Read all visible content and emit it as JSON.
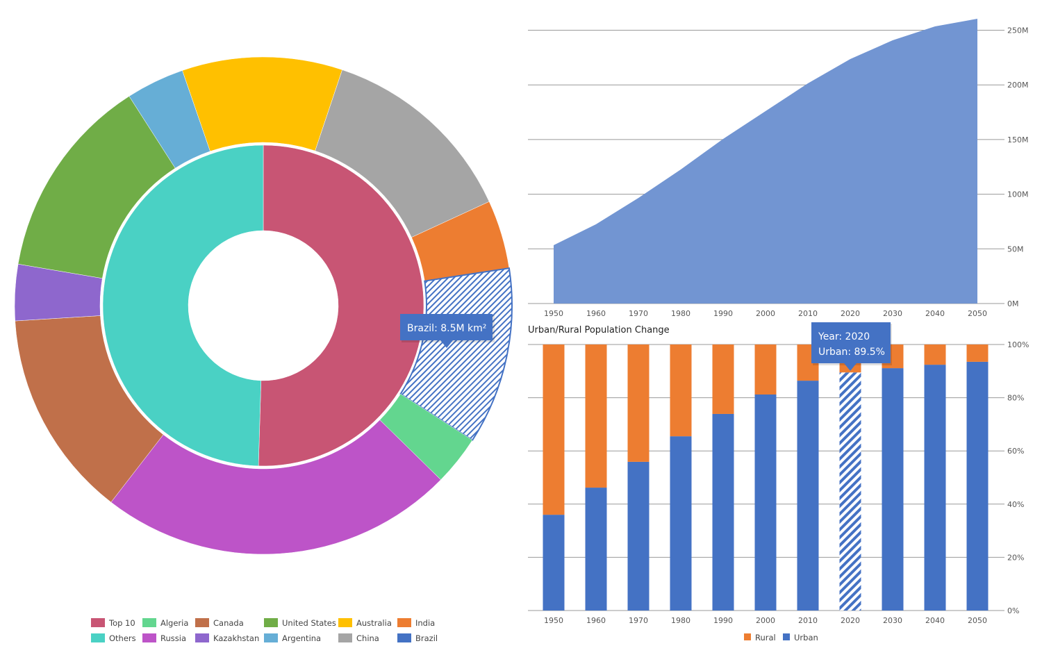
{
  "chart_data": [
    {
      "type": "sunburst",
      "unit": "M km²",
      "inner_ring": [
        {
          "name": "Top 10",
          "value": 73.9,
          "color": "#C85574"
        },
        {
          "name": "Others",
          "value": 72.5,
          "color": "#4AD1C4"
        }
      ],
      "outer_ring": [
        {
          "name": "Australia",
          "value": 7.7,
          "color": "#FFC000"
        },
        {
          "name": "China",
          "value": 9.6,
          "color": "#A5A5A5"
        },
        {
          "name": "India",
          "value": 3.3,
          "color": "#ED7D31"
        },
        {
          "name": "Brazil",
          "value": 8.5,
          "color": "#4472C4",
          "highlighted": true
        },
        {
          "name": "Algeria",
          "value": 2.4,
          "color": "#63D68F"
        },
        {
          "name": "Russia",
          "value": 17.1,
          "color": "#BD54C8"
        },
        {
          "name": "Canada",
          "value": 10.0,
          "color": "#C0704A"
        },
        {
          "name": "Kazakhstan",
          "value": 2.7,
          "color": "#8E67CD"
        },
        {
          "name": "United States",
          "value": 9.8,
          "color": "#70AD47"
        },
        {
          "name": "Argentina",
          "value": 2.8,
          "color": "#66AED6"
        }
      ],
      "legend": [
        "Top 10",
        "Algeria",
        "Canada",
        "United States",
        "Australia",
        "India",
        "Others",
        "Russia",
        "Kazakhstan",
        "Argentina",
        "China",
        "Brazil"
      ],
      "legend_placement": "bottom",
      "tooltip": "Brazil: 8.5M km²"
    },
    {
      "type": "area",
      "x": [
        1950,
        1960,
        1970,
        1980,
        1990,
        2000,
        2010,
        2020,
        2030,
        2040,
        2050
      ],
      "values": [
        53.4,
        72.5,
        96.6,
        122.6,
        150.6,
        176,
        201.4,
        223.6,
        240.8,
        253.5,
        260.5
      ],
      "color": "#7295D2",
      "ylim": [
        0,
        250
      ],
      "yticks": [
        "0M",
        "50M",
        "100M",
        "150M",
        "200M",
        "250M"
      ],
      "xticks": [
        "1950",
        "1960",
        "1970",
        "1980",
        "1990",
        "2000",
        "2010",
        "2020",
        "2030",
        "2040",
        "2050"
      ],
      "grid": true
    },
    {
      "type": "bar",
      "stacked": true,
      "title": "Urban/Rural Population Change",
      "categories": [
        "1950",
        "1960",
        "1970",
        "1980",
        "1990",
        "2000",
        "2010",
        "2020",
        "2030",
        "2040",
        "2050"
      ],
      "series": [
        {
          "name": "Urban",
          "color": "#4472C4",
          "values": [
            36,
            46.2,
            55.9,
            65.5,
            73.9,
            81.2,
            86.4,
            89.5,
            91.1,
            92.4,
            93.5
          ]
        },
        {
          "name": "Rural",
          "color": "#ED7D31",
          "values": [
            64,
            53.8,
            44.1,
            34.5,
            26.1,
            18.8,
            13.6,
            10.5,
            8.9,
            7.6,
            6.5
          ]
        }
      ],
      "ylim": [
        0,
        100
      ],
      "yticks": [
        "0%",
        "20%",
        "40%",
        "60%",
        "80%",
        "100%"
      ],
      "legend": [
        "Rural",
        "Urban"
      ],
      "legend_placement": "bottom",
      "grid": true,
      "tooltip": {
        "line1": "Year: 2020",
        "line2": "Urban: 89.5%"
      },
      "highlighted_category": "2020"
    }
  ]
}
